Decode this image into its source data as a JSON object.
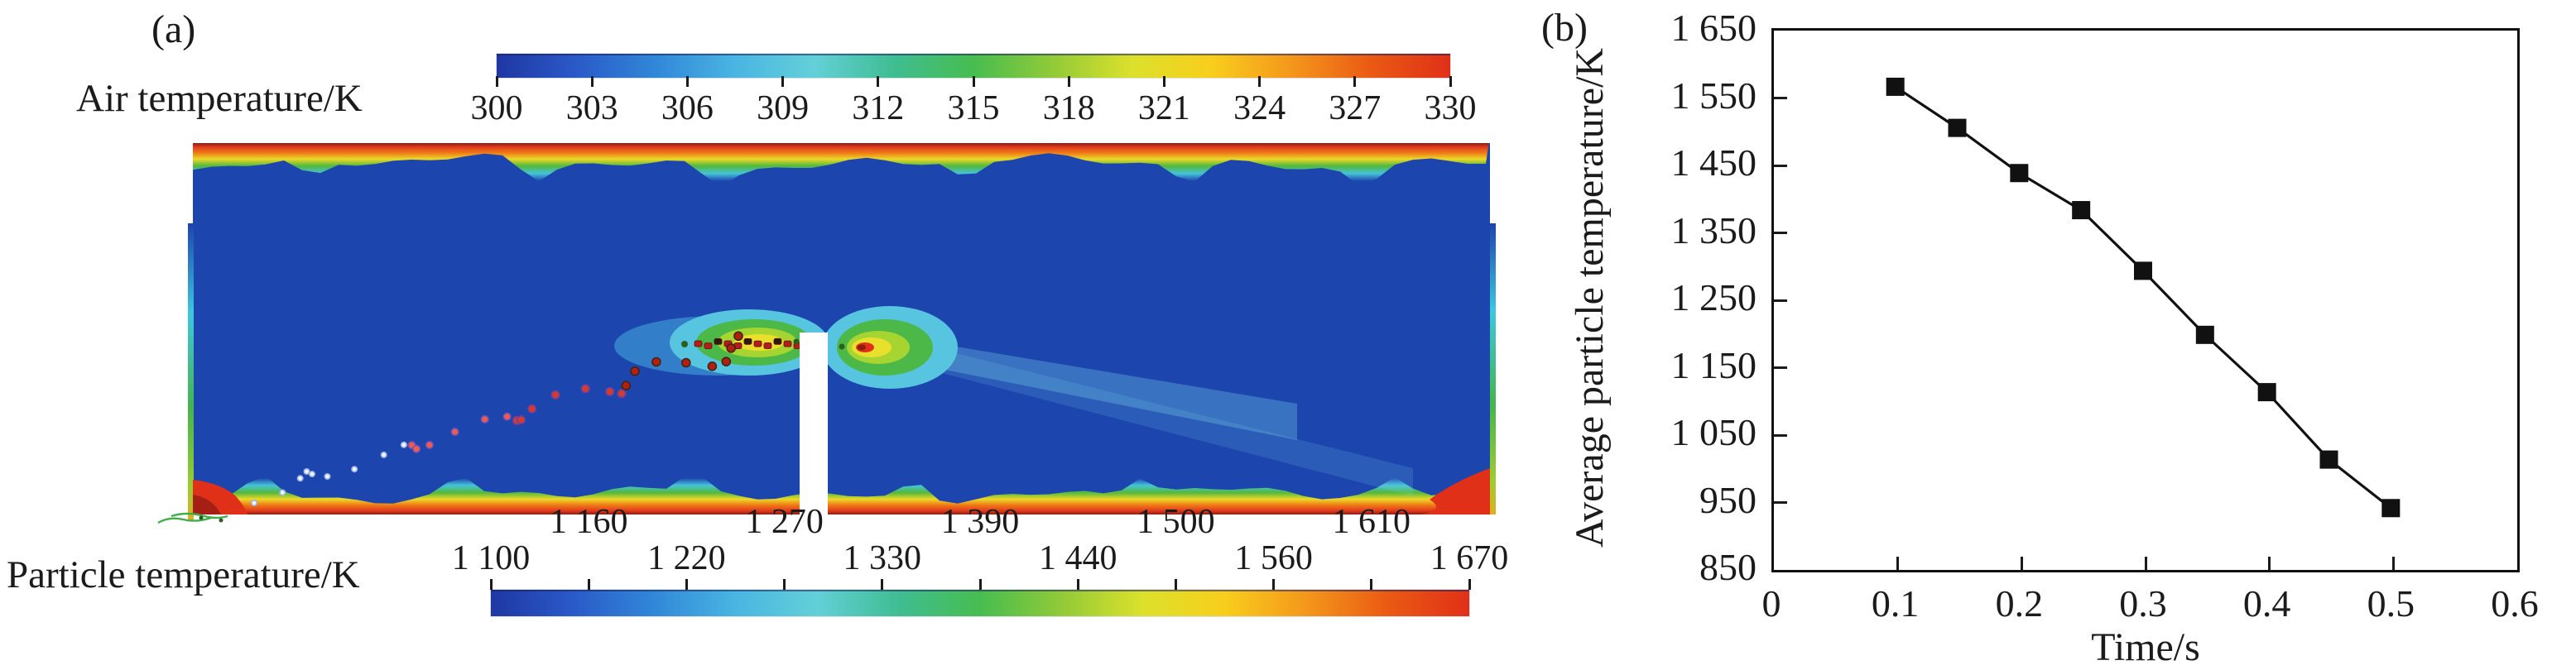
{
  "figure": {
    "panel_a": {
      "label": "(a)",
      "air_colorbar": {
        "title": "Air temperature/K",
        "tick_labels": [
          "300",
          "303",
          "306",
          "309",
          "312",
          "315",
          "318",
          "321",
          "324",
          "327",
          "330"
        ]
      },
      "particle_colorbar": {
        "title": "Particle temperature/K",
        "tick_labels_lower": [
          "1 100",
          "1 220",
          "1 330",
          "1 440",
          "1 560",
          "1 670"
        ],
        "tick_labels_upper": [
          "1 160",
          "1 270",
          "1 390",
          "1 500",
          "1 610"
        ]
      }
    },
    "panel_b": {
      "label": "(b)",
      "ylabel": "Average particle temperature/K",
      "xlabel": "Time/s",
      "ytick_labels": [
        "1 650",
        "1 550",
        "1 450",
        "1 350",
        "1 250",
        "1 150",
        "1 050",
        "950",
        "850"
      ],
      "xtick_labels": [
        "0",
        "0.1",
        "0.2",
        "0.3",
        "0.4",
        "0.5",
        "0.6"
      ]
    }
  },
  "colors": {
    "text": "#1b1b1b",
    "marker": "#111111",
    "field_blue": "#1c45ae",
    "jet": [
      "#1f37a2",
      "#2a5ac8",
      "#3187d8",
      "#49b5e2",
      "#63d0d8",
      "#3fbd92",
      "#47bd4f",
      "#92ca38",
      "#dce12b",
      "#f8ce1c",
      "#f4971b",
      "#ea5a13",
      "#e03018"
    ]
  },
  "chart_data": [
    {
      "panel": "a",
      "type": "heatmap",
      "title": "CFD contour of air temperature with burning particle stream",
      "air_colorbar": {
        "label": "Air temperature/K",
        "min": 300,
        "max": 330,
        "ticks": [
          300,
          303,
          306,
          309,
          312,
          315,
          318,
          321,
          324,
          327,
          330
        ]
      },
      "particle_colorbar": {
        "label": "Particle temperature/K",
        "min": 1100,
        "max": 1670,
        "ticks": [
          1100,
          1160,
          1220,
          1270,
          1330,
          1390,
          1440,
          1500,
          1560,
          1610,
          1670
        ]
      },
      "features": [
        "cold ~300 K blue core region",
        "heated rainbow boundary layers along top and bottom walls",
        "two hot spots (green/yellow, red cores) on either side of central baffle slot",
        "diagonal burning-particle trail from bottom-left inlet up to the baffle",
        "hot red corners at bottom-left inlet and bottom-right outlet"
      ]
    },
    {
      "panel": "b",
      "type": "line",
      "x": [
        0.1,
        0.15,
        0.2,
        0.25,
        0.3,
        0.35,
        0.4,
        0.45,
        0.5
      ],
      "series": [
        {
          "name": "Average particle temperature",
          "values": [
            1563,
            1502,
            1435,
            1380,
            1290,
            1195,
            1110,
            1010,
            938
          ]
        }
      ],
      "xlabel": "Time/s",
      "ylabel": "Average particle temperature/K",
      "xlim": [
        0,
        0.6
      ],
      "ylim": [
        850,
        1650
      ],
      "xticks": [
        0,
        0.1,
        0.2,
        0.3,
        0.4,
        0.5,
        0.6
      ],
      "yticks": [
        850,
        950,
        1050,
        1150,
        1250,
        1350,
        1450,
        1550,
        1650
      ],
      "grid": false,
      "legend": "none",
      "marker": "square",
      "line_color": "#111111"
    }
  ]
}
